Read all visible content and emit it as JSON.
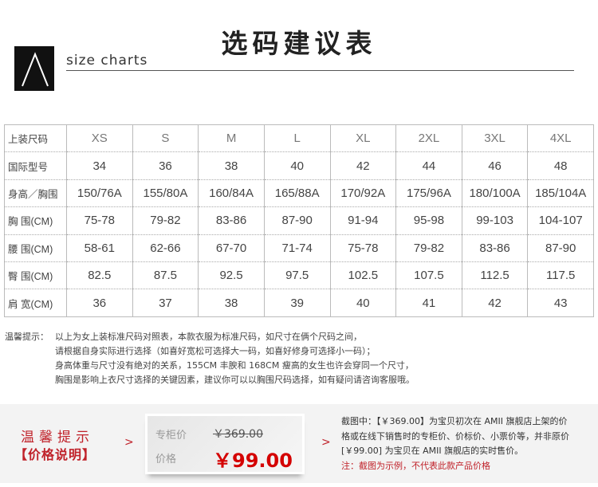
{
  "header": {
    "title": "选码建议表",
    "subtitle": "size charts",
    "logo": "triangle-logo"
  },
  "table": {
    "rows": [
      {
        "label": "上装尺码",
        "values": [
          "XS",
          "S",
          "M",
          "L",
          "XL",
          "2XL",
          "3XL",
          "4XL"
        ]
      },
      {
        "label": "国际型号",
        "values": [
          "34",
          "36",
          "38",
          "40",
          "42",
          "44",
          "46",
          "48"
        ]
      },
      {
        "label": "身高／胸围",
        "values": [
          "150/76A",
          "155/80A",
          "160/84A",
          "165/88A",
          "170/92A",
          "175/96A",
          "180/100A",
          "185/104A"
        ]
      },
      {
        "label": "胸 围(CM)",
        "values": [
          "75-78",
          "79-82",
          "83-86",
          "87-90",
          "91-94",
          "95-98",
          "99-103",
          "104-107"
        ]
      },
      {
        "label": "腰 围(CM)",
        "values": [
          "58-61",
          "62-66",
          "67-70",
          "71-74",
          "75-78",
          "79-82",
          "83-86",
          "87-90"
        ]
      },
      {
        "label": "臀 围(CM)",
        "values": [
          "82.5",
          "87.5",
          "92.5",
          "97.5",
          "102.5",
          "107.5",
          "112.5",
          "117.5"
        ]
      },
      {
        "label": "肩 宽(CM)",
        "values": [
          "36",
          "37",
          "38",
          "39",
          "40",
          "41",
          "42",
          "43"
        ]
      }
    ]
  },
  "notes": {
    "prefix": "温馨提示：",
    "lines": [
      "以上为女上装标准尺码对照表，本款衣服为标准尺码，如尺寸在俩个尺码之间，",
      "请根据自身实际进行选择（如喜好宽松可选择大一码，如喜好修身可选择小一码）；",
      "身高体重与尺寸没有绝对的关系，155CM 丰腴和 168CM 瘦高的女生也许会穿同一个尺寸，",
      "胸围是影响上衣尺寸选择的关键因素，建议你可以以胸围尺码选择，如有疑问请咨询客服哦。"
    ]
  },
  "price_panel": {
    "tip_title": "温馨提示",
    "tip_subtitle": "【价格说明】",
    "counter_label": "专柜价",
    "counter_price": "￥369.00",
    "price_label": "价格",
    "price": "￥99.00",
    "description": [
      "截图中：【￥369.00】为宝贝初次在 AMII 旗舰店上架的价",
      "格或在线下销售时的专柜价、价标价、小票价等，并非原价",
      "[￥99.00] 为宝贝在 AMII 旗舰店的实时售价。"
    ],
    "note": "注：截图为示例，不代表此款产品价格",
    "accent": "#c0222a"
  }
}
